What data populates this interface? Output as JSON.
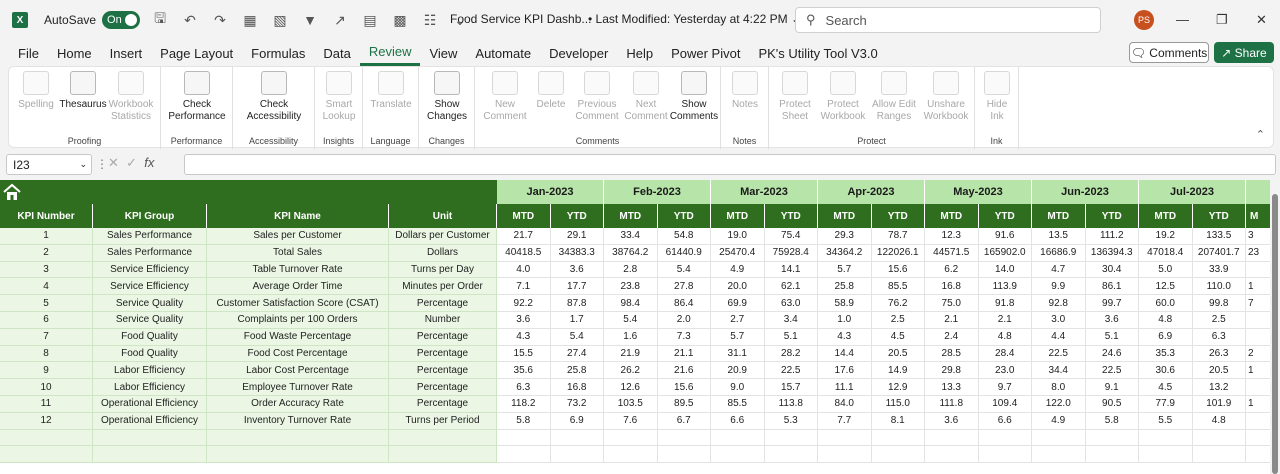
{
  "titlebar": {
    "app_icon": "X",
    "autosave_label": "AutoSave",
    "autosave_state": "On",
    "doc_title": "Food Service KPI Dashb...",
    "last_modified": "•  Last Modified: Yesterday at 4:22 PM",
    "search_placeholder": "Search",
    "user_initials": "PS"
  },
  "menu": [
    "File",
    "Home",
    "Insert",
    "Page Layout",
    "Formulas",
    "Data",
    "Review",
    "View",
    "Automate",
    "Developer",
    "Help",
    "Power Pivot",
    "PK's Utility Tool V3.0"
  ],
  "menu_active": "Review",
  "header_buttons": {
    "comments": "Comments",
    "share": "Share"
  },
  "ribbon": {
    "groups": [
      {
        "label": "Proofing",
        "buttons": [
          "Spelling",
          "Thesaurus",
          "Workbook Statistics"
        ]
      },
      {
        "label": "Performance",
        "buttons": [
          "Check Performance"
        ]
      },
      {
        "label": "Accessibility",
        "buttons": [
          "Check Accessibility"
        ]
      },
      {
        "label": "Insights",
        "buttons": [
          "Smart Lookup"
        ]
      },
      {
        "label": "Language",
        "buttons": [
          "Translate"
        ]
      },
      {
        "label": "Changes",
        "buttons": [
          "Show Changes"
        ]
      },
      {
        "label": "Comments",
        "buttons": [
          "New Comment",
          "Delete",
          "Previous Comment",
          "Next Comment",
          "Show Comments"
        ]
      },
      {
        "label": "Notes",
        "buttons": [
          "Notes"
        ]
      },
      {
        "label": "Protect",
        "buttons": [
          "Protect Sheet",
          "Protect Workbook",
          "Allow Edit Ranges",
          "Unshare Workbook"
        ]
      },
      {
        "label": "Ink",
        "buttons": [
          "Hide Ink"
        ]
      }
    ]
  },
  "formula_bar": {
    "name_box": "I23",
    "fx": "fx",
    "formula": ""
  },
  "sheet": {
    "months": [
      "Jan-2023",
      "Feb-2023",
      "Mar-2023",
      "Apr-2023",
      "May-2023",
      "Jun-2023",
      "Jul-2023"
    ],
    "col_headers": [
      "KPI Number",
      "KPI Group",
      "KPI Name",
      "Unit"
    ],
    "sub_headers": [
      "MTD",
      "YTD"
    ],
    "partial_col_header": "M",
    "rows": [
      {
        "num": "1",
        "group": "Sales Performance",
        "name": "Sales per Customer",
        "unit": "Dollars per Customer",
        "vals": [
          "21.7",
          "29.1",
          "33.4",
          "54.8",
          "19.0",
          "75.4",
          "29.3",
          "78.7",
          "12.3",
          "91.6",
          "13.5",
          "111.2",
          "19.2",
          "133.5"
        ],
        "edge": "3"
      },
      {
        "num": "2",
        "group": "Sales Performance",
        "name": "Total Sales",
        "unit": "Dollars",
        "vals": [
          "40418.5",
          "34383.3",
          "38764.2",
          "61440.9",
          "25470.4",
          "75928.4",
          "34364.2",
          "122026.1",
          "44571.5",
          "165902.0",
          "16686.9",
          "136394.3",
          "47018.4",
          "207401.7"
        ],
        "edge": "23"
      },
      {
        "num": "3",
        "group": "Service Efficiency",
        "name": "Table Turnover Rate",
        "unit": "Turns per Day",
        "vals": [
          "4.0",
          "3.6",
          "2.8",
          "5.4",
          "4.9",
          "14.1",
          "5.7",
          "15.6",
          "6.2",
          "14.0",
          "4.7",
          "30.4",
          "5.0",
          "33.9"
        ],
        "edge": ""
      },
      {
        "num": "4",
        "group": "Service Efficiency",
        "name": "Average Order Time",
        "unit": "Minutes per Order",
        "vals": [
          "7.1",
          "17.7",
          "23.8",
          "27.8",
          "20.0",
          "62.1",
          "25.8",
          "85.5",
          "16.8",
          "113.9",
          "9.9",
          "86.1",
          "12.5",
          "110.0"
        ],
        "edge": "1"
      },
      {
        "num": "5",
        "group": "Service Quality",
        "name": "Customer Satisfaction Score (CSAT)",
        "unit": "Percentage",
        "vals": [
          "92.2",
          "87.8",
          "98.4",
          "86.4",
          "69.9",
          "63.0",
          "58.9",
          "76.2",
          "75.0",
          "91.8",
          "92.8",
          "99.7",
          "60.0",
          "99.8"
        ],
        "edge": "7"
      },
      {
        "num": "6",
        "group": "Service Quality",
        "name": "Complaints per 100 Orders",
        "unit": "Number",
        "vals": [
          "3.6",
          "1.7",
          "5.4",
          "2.0",
          "2.7",
          "3.4",
          "1.0",
          "2.5",
          "2.1",
          "2.1",
          "3.0",
          "3.6",
          "4.8",
          "2.5"
        ],
        "edge": ""
      },
      {
        "num": "7",
        "group": "Food Quality",
        "name": "Food Waste Percentage",
        "unit": "Percentage",
        "vals": [
          "4.3",
          "5.4",
          "1.6",
          "7.3",
          "5.7",
          "5.1",
          "4.3",
          "4.5",
          "2.4",
          "4.8",
          "4.4",
          "5.1",
          "6.9",
          "6.3"
        ],
        "edge": ""
      },
      {
        "num": "8",
        "group": "Food Quality",
        "name": "Food Cost Percentage",
        "unit": "Percentage",
        "vals": [
          "15.5",
          "27.4",
          "21.9",
          "21.1",
          "31.1",
          "28.2",
          "14.4",
          "20.5",
          "28.5",
          "28.4",
          "22.5",
          "24.6",
          "35.3",
          "26.3"
        ],
        "edge": "2"
      },
      {
        "num": "9",
        "group": "Labor Efficiency",
        "name": "Labor Cost Percentage",
        "unit": "Percentage",
        "vals": [
          "35.6",
          "25.8",
          "26.2",
          "21.6",
          "20.9",
          "22.5",
          "17.6",
          "14.9",
          "29.8",
          "23.0",
          "34.4",
          "22.5",
          "30.6",
          "20.5"
        ],
        "edge": "1"
      },
      {
        "num": "10",
        "group": "Labor Efficiency",
        "name": "Employee Turnover Rate",
        "unit": "Percentage",
        "vals": [
          "6.3",
          "16.8",
          "12.6",
          "15.6",
          "9.0",
          "15.7",
          "11.1",
          "12.9",
          "13.3",
          "9.7",
          "8.0",
          "9.1",
          "4.5",
          "13.2"
        ],
        "edge": ""
      },
      {
        "num": "11",
        "group": "Operational Efficiency",
        "name": "Order Accuracy Rate",
        "unit": "Percentage",
        "vals": [
          "118.2",
          "73.2",
          "103.5",
          "89.5",
          "85.5",
          "113.8",
          "84.0",
          "115.0",
          "111.8",
          "109.4",
          "122.0",
          "90.5",
          "77.9",
          "101.9"
        ],
        "edge": "1"
      },
      {
        "num": "12",
        "group": "Operational Efficiency",
        "name": "Inventory Turnover Rate",
        "unit": "Turns per Period",
        "vals": [
          "5.8",
          "6.9",
          "7.6",
          "6.7",
          "6.6",
          "5.3",
          "7.7",
          "8.1",
          "3.6",
          "6.6",
          "4.9",
          "5.8",
          "5.5",
          "4.8"
        ],
        "edge": ""
      }
    ]
  },
  "colors": {
    "dark_green": "#2f6e1f",
    "light_green": "#b7e4a8",
    "row_tint": "#ebf7e4",
    "excel_green": "#1e7145"
  }
}
